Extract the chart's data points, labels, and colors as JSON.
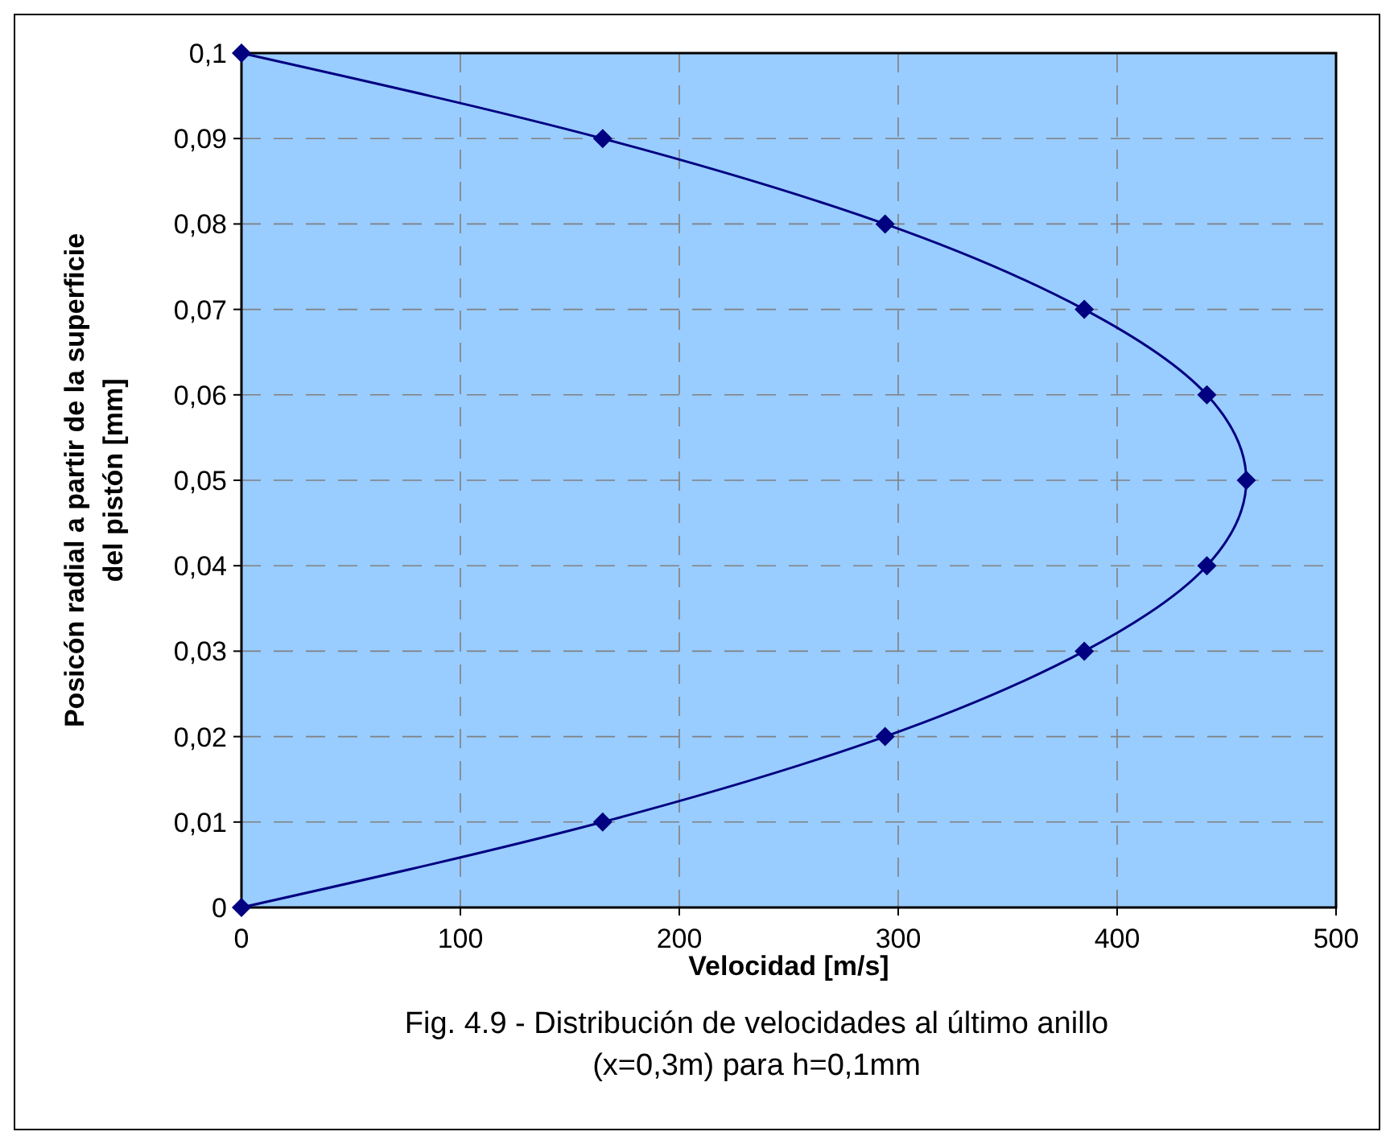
{
  "chart_data": {
    "type": "line",
    "xlabel": "Velocidad [m/s]",
    "ylabel": "Posicón radial a partir de la superficie del pistón [mm]",
    "annotations": [
      "Fig. 4.9 - Distribución de velocidades al último anillo (x=0,3m) para h=0,1mm"
    ],
    "x": [
      0,
      165,
      294,
      385,
      441,
      459,
      441,
      385,
      294,
      165,
      0
    ],
    "series": [
      {
        "color": "#000080",
        "values": [
          0,
          0.01,
          0.02,
          0.03,
          0.04,
          0.05,
          0.06,
          0.07,
          0.08,
          0.09,
          0.1
        ]
      }
    ],
    "xlim": [
      0,
      500
    ],
    "xticks": [
      0,
      100,
      200,
      300,
      400,
      500
    ],
    "ylim": [
      0,
      0.1
    ],
    "yticks": [
      {
        "value": 0,
        "label": "0"
      },
      {
        "value": 0.01,
        "label": "0,01"
      },
      {
        "value": 0.02,
        "label": "0,02"
      },
      {
        "value": 0.03,
        "label": "0,03"
      },
      {
        "value": 0.04,
        "label": "0,04"
      },
      {
        "value": 0.05,
        "label": "0,05"
      },
      {
        "value": 0.06,
        "label": "0,06"
      },
      {
        "value": 0.07,
        "label": "0,07"
      },
      {
        "value": 0.08,
        "label": "0,08"
      },
      {
        "value": 0.09,
        "label": "0,09"
      },
      {
        "value": 0.1,
        "label": "0,1"
      }
    ],
    "grid": true,
    "marker": "diamond",
    "line_style": "solid"
  }
}
